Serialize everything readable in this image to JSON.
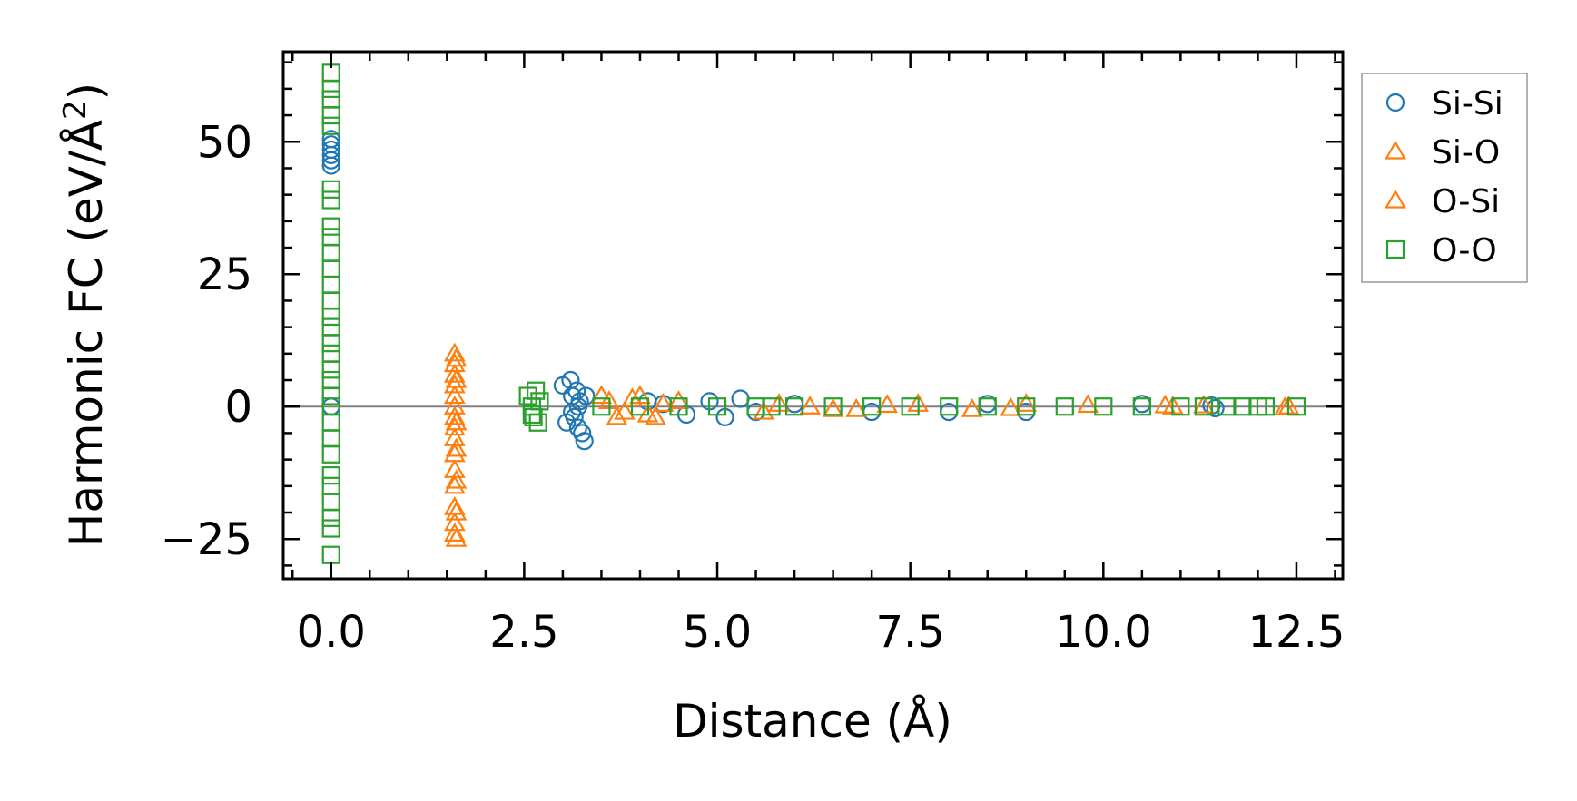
{
  "chart_data": {
    "type": "scatter",
    "title": "",
    "xlabel": "Distance (Å)",
    "ylabel_main": "Harmonic FC (eV/Å",
    "ylabel_sup": "2",
    "ylabel_close": ")",
    "xlim": [
      -0.62,
      13.1
    ],
    "ylim": [
      -32.5,
      67
    ],
    "xticks": [
      0.0,
      2.5,
      5.0,
      7.5,
      10.0,
      12.5
    ],
    "xtick_labels": [
      "0.0",
      "2.5",
      "5.0",
      "7.5",
      "10.0",
      "12.5"
    ],
    "yticks": [
      -25,
      0,
      25,
      50
    ],
    "ytick_labels": [
      "−25",
      "0",
      "25",
      "50"
    ],
    "zero_line": true,
    "legend_position": "outside-top-right",
    "series": [
      {
        "name": "Si-Si",
        "marker": "circle",
        "color": "#1f77b4",
        "points": [
          [
            0,
            0
          ],
          [
            0,
            45.5
          ],
          [
            0,
            46.5
          ],
          [
            0,
            47.5
          ],
          [
            0,
            48.5
          ],
          [
            0,
            49.5
          ],
          [
            0,
            50.5
          ],
          [
            3.0,
            4
          ],
          [
            3.05,
            -3
          ],
          [
            3.1,
            5
          ],
          [
            3.12,
            2
          ],
          [
            3.15,
            -2
          ],
          [
            3.18,
            3
          ],
          [
            3.2,
            -4
          ],
          [
            3.22,
            1
          ],
          [
            3.25,
            -5
          ],
          [
            3.28,
            -6.5
          ],
          [
            3.3,
            2
          ],
          [
            3.12,
            -1
          ],
          [
            3.2,
            0
          ],
          [
            4.1,
            1
          ],
          [
            4.3,
            0.5
          ],
          [
            4.6,
            -1.5
          ],
          [
            4.9,
            1
          ],
          [
            5.1,
            -2
          ],
          [
            5.3,
            1.5
          ],
          [
            5.5,
            -1
          ],
          [
            6.0,
            0.5
          ],
          [
            7.0,
            -1
          ],
          [
            8.0,
            -1
          ],
          [
            8.5,
            0.5
          ],
          [
            9.0,
            -1
          ],
          [
            10.5,
            0.5
          ],
          [
            11.4,
            0.2
          ],
          [
            11.45,
            -0.3
          ]
        ]
      },
      {
        "name": "Si-O",
        "marker": "triangle",
        "color": "#ff7f0e",
        "points": [
          [
            1.6,
            10
          ],
          [
            1.6,
            8
          ],
          [
            1.6,
            6
          ],
          [
            1.6,
            4
          ],
          [
            1.6,
            2
          ],
          [
            1.6,
            0
          ],
          [
            1.6,
            -2
          ],
          [
            1.6,
            -4
          ],
          [
            1.6,
            -6
          ],
          [
            1.6,
            -9
          ],
          [
            1.6,
            -12
          ],
          [
            1.6,
            -15
          ],
          [
            1.6,
            -19
          ],
          [
            1.6,
            -22
          ],
          [
            1.6,
            -24
          ],
          [
            3.5,
            2
          ],
          [
            3.7,
            -2
          ],
          [
            3.9,
            1.5
          ],
          [
            4.1,
            -1.5
          ],
          [
            4.3,
            0.5
          ],
          [
            5.6,
            -1
          ],
          [
            6.2,
            0
          ],
          [
            6.8,
            -0.5
          ],
          [
            7.6,
            0.5
          ],
          [
            8.3,
            -0.5
          ],
          [
            9.0,
            0.5
          ],
          [
            10.9,
            0
          ],
          [
            11.3,
            0.2
          ],
          [
            12.4,
            0
          ]
        ]
      },
      {
        "name": "O-Si",
        "marker": "triangle",
        "color": "#ff7f0e",
        "points": [
          [
            1.62,
            9
          ],
          [
            1.62,
            5
          ],
          [
            1.62,
            -3
          ],
          [
            1.62,
            -8
          ],
          [
            1.62,
            -14
          ],
          [
            1.62,
            -20
          ],
          [
            1.62,
            -25
          ],
          [
            3.6,
            1
          ],
          [
            3.8,
            -1
          ],
          [
            4.0,
            2
          ],
          [
            4.2,
            -2
          ],
          [
            4.5,
            1
          ],
          [
            5.8,
            0.5
          ],
          [
            6.5,
            -0.5
          ],
          [
            7.2,
            0.3
          ],
          [
            8.8,
            -0.3
          ],
          [
            9.8,
            0.3
          ],
          [
            10.8,
            0.2
          ],
          [
            12.35,
            -0.2
          ]
        ]
      },
      {
        "name": "O-O",
        "marker": "square",
        "color": "#2ca02c",
        "points": [
          [
            0,
            63
          ],
          [
            0,
            60
          ],
          [
            0,
            58
          ],
          [
            0,
            55
          ],
          [
            0,
            53
          ],
          [
            0,
            41
          ],
          [
            0,
            39
          ],
          [
            0,
            34
          ],
          [
            0,
            32
          ],
          [
            0,
            29
          ],
          [
            0,
            26
          ],
          [
            0,
            23
          ],
          [
            0,
            20
          ],
          [
            0,
            17
          ],
          [
            0,
            15
          ],
          [
            0,
            12
          ],
          [
            0,
            10
          ],
          [
            0,
            7
          ],
          [
            0,
            5
          ],
          [
            0,
            2
          ],
          [
            0,
            0
          ],
          [
            0,
            -3
          ],
          [
            0,
            -6
          ],
          [
            0,
            -9
          ],
          [
            0,
            -13
          ],
          [
            0,
            -15
          ],
          [
            0,
            -18
          ],
          [
            0,
            -21
          ],
          [
            0,
            -23
          ],
          [
            0,
            -28
          ],
          [
            2.55,
            2
          ],
          [
            2.6,
            0
          ],
          [
            2.62,
            -2
          ],
          [
            2.65,
            3
          ],
          [
            2.68,
            -3
          ],
          [
            2.7,
            1
          ],
          [
            2.6,
            -1.5
          ],
          [
            3.5,
            0
          ],
          [
            4.0,
            0
          ],
          [
            4.5,
            0
          ],
          [
            5.0,
            0
          ],
          [
            5.5,
            0
          ],
          [
            5.7,
            0
          ],
          [
            6.0,
            0
          ],
          [
            6.5,
            0
          ],
          [
            7.0,
            0
          ],
          [
            7.5,
            0
          ],
          [
            8.0,
            0
          ],
          [
            8.5,
            0
          ],
          [
            9.0,
            0
          ],
          [
            9.5,
            0
          ],
          [
            10.0,
            0
          ],
          [
            10.5,
            0
          ],
          [
            11.0,
            0
          ],
          [
            11.3,
            0
          ],
          [
            11.6,
            0
          ],
          [
            11.8,
            0
          ],
          [
            12.0,
            0
          ],
          [
            12.1,
            0
          ],
          [
            12.5,
            0
          ]
        ]
      }
    ]
  }
}
